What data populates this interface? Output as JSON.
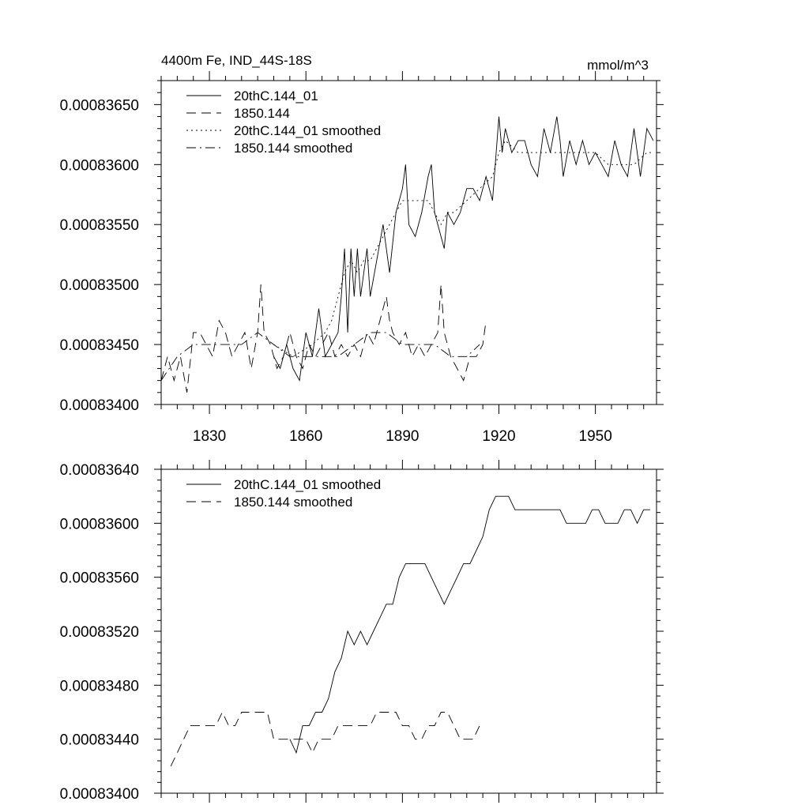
{
  "chart_data": [
    {
      "type": "line",
      "title": "4400m Fe, IND_44S-18S",
      "units": "mmol/m^3",
      "xlabel": "",
      "ylabel": "",
      "xlim": [
        1815,
        1969
      ],
      "ylim": [
        0.000834,
        0.0008367
      ],
      "xticks": [
        1830,
        1860,
        1890,
        1920,
        1950
      ],
      "xtick_labels": [
        "1830",
        "1860",
        "1890",
        "1920",
        "1950"
      ],
      "yticks": [
        0.000834,
        0.0008345,
        0.000835,
        0.0008355,
        0.000836,
        0.0008365
      ],
      "ytick_labels": [
        "0.00083400",
        "0.00083450",
        "0.00083500",
        "0.00083550",
        "0.00083600",
        "0.00083650"
      ],
      "legend_position": "top-left",
      "series": [
        {
          "name": "20thC.144_01",
          "style": "solid",
          "x": [
            1850,
            1852,
            1854,
            1856,
            1858,
            1860,
            1862,
            1864,
            1866,
            1868,
            1870,
            1871,
            1872,
            1873,
            1874,
            1875,
            1876,
            1877,
            1878,
            1879,
            1880,
            1882,
            1884,
            1886,
            1888,
            1890,
            1891,
            1892,
            1894,
            1896,
            1898,
            1899,
            1900,
            1902,
            1903,
            1904,
            1906,
            1908,
            1910,
            1912,
            1914,
            1916,
            1918,
            1920,
            1921,
            1922,
            1924,
            1926,
            1928,
            1930,
            1932,
            1934,
            1936,
            1938,
            1939,
            1940,
            1942,
            1944,
            1946,
            1948,
            1950,
            1952,
            1954,
            1956,
            1958,
            1960,
            1962,
            1964,
            1966,
            1968
          ],
          "values": [
            0.0008344,
            0.0008343,
            0.0008345,
            0.0008343,
            0.0008342,
            0.0008346,
            0.0008344,
            0.0008348,
            0.0008344,
            0.0008345,
            0.0008346,
            0.0008349,
            0.0008353,
            0.0008346,
            0.0008353,
            0.0008349,
            0.0008353,
            0.0008349,
            0.0008351,
            0.0008353,
            0.0008349,
            0.0008352,
            0.0008355,
            0.0008351,
            0.0008356,
            0.0008358,
            0.000836,
            0.0008355,
            0.0008354,
            0.0008356,
            0.0008359,
            0.000836,
            0.0008356,
            0.0008354,
            0.0008353,
            0.0008356,
            0.0008355,
            0.0008356,
            0.0008358,
            0.0008358,
            0.0008357,
            0.0008359,
            0.0008357,
            0.0008364,
            0.0008361,
            0.0008363,
            0.0008361,
            0.0008362,
            0.0008362,
            0.000836,
            0.0008359,
            0.0008363,
            0.0008361,
            0.0008364,
            0.0008362,
            0.0008359,
            0.0008362,
            0.000836,
            0.0008362,
            0.000836,
            0.0008361,
            0.000836,
            0.0008359,
            0.0008362,
            0.000836,
            0.0008359,
            0.0008363,
            0.0008359,
            0.0008363,
            0.0008362
          ]
        },
        {
          "name": "1850.144",
          "style": "dashed",
          "x": [
            1815,
            1817,
            1819,
            1821,
            1823,
            1825,
            1827,
            1829,
            1831,
            1833,
            1835,
            1837,
            1839,
            1841,
            1843,
            1845,
            1846,
            1847,
            1849,
            1851,
            1853,
            1855,
            1857,
            1859,
            1861,
            1863,
            1865,
            1867,
            1869,
            1871,
            1873,
            1875,
            1877,
            1879,
            1881,
            1883,
            1885,
            1886,
            1887,
            1889,
            1891,
            1893,
            1895,
            1897,
            1899,
            1901,
            1902,
            1903,
            1905,
            1907,
            1909,
            1911,
            1913,
            1915,
            1916
          ],
          "values": [
            0.0008342,
            0.0008344,
            0.0008342,
            0.0008344,
            0.0008341,
            0.0008346,
            0.0008346,
            0.0008345,
            0.0008344,
            0.0008347,
            0.0008346,
            0.0008344,
            0.0008345,
            0.0008346,
            0.0008343,
            0.0008346,
            0.000835,
            0.0008346,
            0.0008345,
            0.0008343,
            0.0008344,
            0.0008346,
            0.0008344,
            0.0008343,
            0.0008345,
            0.0008344,
            0.0008345,
            0.0008346,
            0.0008344,
            0.0008345,
            0.0008344,
            0.0008345,
            0.0008344,
            0.0008346,
            0.0008345,
            0.0008347,
            0.0008349,
            0.0008347,
            0.0008346,
            0.0008345,
            0.0008346,
            0.0008344,
            0.0008345,
            0.0008344,
            0.0008345,
            0.0008346,
            0.000835,
            0.0008346,
            0.0008344,
            0.0008343,
            0.0008342,
            0.0008344,
            0.0008344,
            0.0008345,
            0.0008347
          ]
        },
        {
          "name": "20thC.144_01 smoothed",
          "style": "dotted",
          "x": [
            1850,
            1856,
            1862,
            1866,
            1868,
            1870,
            1872,
            1874,
            1876,
            1878,
            1880,
            1884,
            1888,
            1890,
            1892,
            1896,
            1898,
            1900,
            1902,
            1904,
            1906,
            1910,
            1914,
            1918,
            1920,
            1922,
            1926,
            1930,
            1934,
            1938,
            1942,
            1946,
            1950,
            1954,
            1958,
            1962,
            1966,
            1968
          ],
          "values": [
            0.0008345,
            0.0008344,
            0.0008345,
            0.0008346,
            0.0008347,
            0.0008349,
            0.0008351,
            0.0008352,
            0.0008351,
            0.0008352,
            0.0008352,
            0.0008354,
            0.0008356,
            0.0008357,
            0.0008357,
            0.0008357,
            0.0008357,
            0.0008356,
            0.0008355,
            0.0008356,
            0.0008356,
            0.0008357,
            0.0008358,
            0.0008359,
            0.0008361,
            0.0008362,
            0.0008361,
            0.0008361,
            0.0008361,
            0.0008361,
            0.0008361,
            0.0008361,
            0.0008361,
            0.000836,
            0.000836,
            0.000836,
            0.0008361,
            0.0008361
          ]
        },
        {
          "name": "1850.144 smoothed",
          "style": "dashdot",
          "x": [
            1815,
            1820,
            1825,
            1830,
            1835,
            1840,
            1845,
            1850,
            1855,
            1860,
            1865,
            1870,
            1875,
            1880,
            1885,
            1890,
            1895,
            1900,
            1905,
            1910,
            1914
          ],
          "values": [
            0.0008342,
            0.0008344,
            0.0008345,
            0.0008345,
            0.0008345,
            0.0008345,
            0.0008346,
            0.0008345,
            0.0008344,
            0.0008344,
            0.0008344,
            0.0008344,
            0.0008345,
            0.0008346,
            0.0008346,
            0.0008345,
            0.0008345,
            0.0008345,
            0.0008344,
            0.0008344,
            0.0008345
          ]
        }
      ]
    },
    {
      "type": "line",
      "title": "",
      "xlabel": "",
      "ylabel": "",
      "xlim": [
        1815,
        1969
      ],
      "ylim": [
        0.000834,
        0.0008364
      ],
      "xticks": [
        1830,
        1860,
        1890,
        1920,
        1950
      ],
      "xtick_labels": [],
      "yticks": [
        0.000834,
        0.0008344,
        0.0008348,
        0.0008352,
        0.0008356,
        0.000836,
        0.0008364
      ],
      "ytick_labels": [
        "0.00083400",
        "0.00083440",
        "0.00083480",
        "0.00083520",
        "0.00083560",
        "0.00083600",
        "0.00083640"
      ],
      "legend_position": "top-left",
      "series": [
        {
          "name": "20thC.144_01 smoothed",
          "style": "solid",
          "x": [
            1855,
            1857,
            1859,
            1861,
            1863,
            1865,
            1867,
            1869,
            1871,
            1873,
            1875,
            1877,
            1879,
            1881,
            1883,
            1885,
            1887,
            1889,
            1891,
            1893,
            1895,
            1897,
            1899,
            1901,
            1903,
            1905,
            1907,
            1909,
            1911,
            1913,
            1915,
            1917,
            1919,
            1921,
            1923,
            1925,
            1927,
            1929,
            1931,
            1933,
            1935,
            1937,
            1939,
            1941,
            1943,
            1945,
            1947,
            1949,
            1951,
            1953,
            1955,
            1957,
            1959,
            1961,
            1963,
            1965,
            1967
          ],
          "values": [
            0.0008344,
            0.0008343,
            0.0008345,
            0.0008345,
            0.0008346,
            0.0008346,
            0.0008347,
            0.0008349,
            0.000835,
            0.0008352,
            0.0008351,
            0.0008352,
            0.0008351,
            0.0008352,
            0.0008353,
            0.0008354,
            0.0008354,
            0.0008356,
            0.0008357,
            0.0008357,
            0.0008357,
            0.0008357,
            0.0008356,
            0.0008355,
            0.0008354,
            0.0008355,
            0.0008356,
            0.0008357,
            0.0008357,
            0.0008358,
            0.0008359,
            0.0008361,
            0.0008362,
            0.0008362,
            0.0008362,
            0.0008361,
            0.0008361,
            0.0008361,
            0.0008361,
            0.0008361,
            0.0008361,
            0.0008361,
            0.0008361,
            0.000836,
            0.000836,
            0.000836,
            0.000836,
            0.0008361,
            0.0008361,
            0.000836,
            0.000836,
            0.000836,
            0.0008361,
            0.0008361,
            0.000836,
            0.0008361,
            0.0008361
          ]
        },
        {
          "name": "1850.144 smoothed",
          "style": "dashed",
          "x": [
            1818,
            1820,
            1822,
            1824,
            1826,
            1828,
            1830,
            1832,
            1834,
            1836,
            1838,
            1840,
            1842,
            1844,
            1846,
            1848,
            1850,
            1852,
            1854,
            1856,
            1858,
            1860,
            1862,
            1864,
            1866,
            1868,
            1870,
            1872,
            1874,
            1876,
            1878,
            1880,
            1882,
            1884,
            1886,
            1888,
            1890,
            1892,
            1894,
            1896,
            1898,
            1900,
            1902,
            1904,
            1906,
            1908,
            1910,
            1912,
            1914
          ],
          "values": [
            0.0008342,
            0.0008343,
            0.0008344,
            0.0008345,
            0.0008345,
            0.0008345,
            0.0008345,
            0.0008345,
            0.0008346,
            0.0008345,
            0.0008345,
            0.0008346,
            0.0008346,
            0.0008346,
            0.0008346,
            0.0008346,
            0.0008344,
            0.0008344,
            0.0008344,
            0.0008344,
            0.0008344,
            0.0008344,
            0.0008343,
            0.0008344,
            0.0008344,
            0.0008344,
            0.0008345,
            0.0008345,
            0.0008345,
            0.0008345,
            0.0008345,
            0.0008345,
            0.0008346,
            0.0008346,
            0.0008346,
            0.0008346,
            0.0008345,
            0.0008345,
            0.0008344,
            0.0008344,
            0.0008345,
            0.0008345,
            0.0008346,
            0.0008346,
            0.0008345,
            0.0008344,
            0.0008344,
            0.0008344,
            0.0008345
          ]
        }
      ]
    }
  ]
}
